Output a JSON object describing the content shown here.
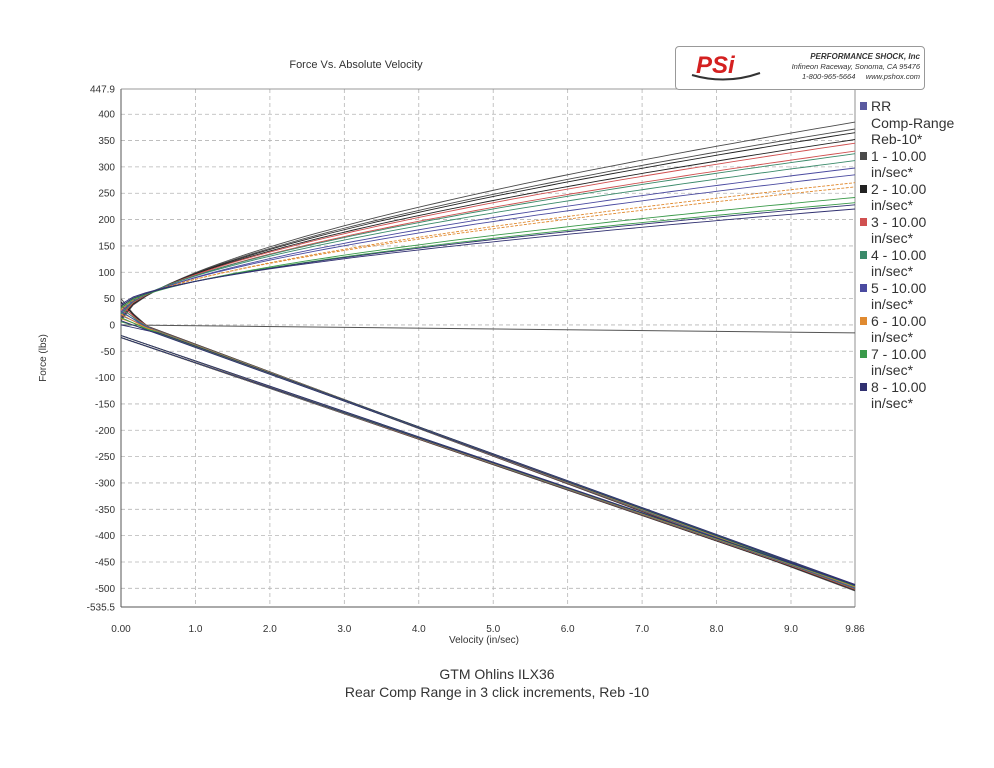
{
  "chart_data": {
    "type": "line",
    "title": "Force Vs. Absolute Velocity",
    "xlabel": "Velocity (in/sec)",
    "ylabel": "Force (lbs)",
    "xlim": [
      0,
      9.86
    ],
    "ylim": [
      -535.5,
      447.9
    ],
    "x_ticks": [
      "0.00",
      "1.0",
      "2.0",
      "3.0",
      "4.0",
      "5.0",
      "6.0",
      "7.0",
      "8.0",
      "9.0",
      "9.86"
    ],
    "x_tick_values": [
      0,
      1,
      2,
      3,
      4,
      5,
      6,
      7,
      8,
      9,
      9.86
    ],
    "y_ticks": [
      "447.9",
      "400",
      "350",
      "300",
      "250",
      "200",
      "150",
      "100",
      "50",
      "0",
      "-50",
      "-100",
      "-150",
      "-200",
      "-250",
      "-300",
      "-350",
      "-400",
      "-450",
      "-500",
      "-535.5"
    ],
    "y_tick_values": [
      447.9,
      400,
      350,
      300,
      250,
      200,
      150,
      100,
      50,
      0,
      -50,
      -100,
      -150,
      -200,
      -250,
      -300,
      -350,
      -400,
      -450,
      -500,
      -535.5
    ],
    "grid": true,
    "legend_position": "right",
    "legend_title": "RR\nComp-Range\nReb-10*",
    "legend_title_color": "#5a5aa0",
    "series": [
      {
        "name": "1 - 10.00\nin/sec*",
        "color": "#4a4a4a",
        "comp_values": [
          385,
          372
        ]
      },
      {
        "name": "2 - 10.00\nin/sec*",
        "color": "#222222",
        "comp_values": [
          365,
          352
        ]
      },
      {
        "name": "3 - 10.00\nin/sec*",
        "color": "#d05050",
        "comp_values": [
          345,
          330
        ]
      },
      {
        "name": "4 - 10.00\nin/sec*",
        "color": "#3a8a6a",
        "comp_values": [
          325,
          312
        ]
      },
      {
        "name": "5 - 10.00\nin/sec*",
        "color": "#4a4aa0",
        "comp_values": [
          298,
          285
        ]
      },
      {
        "name": "6 - 10.00\nin/sec*",
        "color": "#e08a30",
        "comp_values": [
          270,
          262
        ]
      },
      {
        "name": "7 - 10.00\nin/sec*",
        "color": "#3a9a4a",
        "comp_values": [
          242,
          232
        ]
      },
      {
        "name": "8 - 10.00\nin/sec*",
        "color": "#303070",
        "comp_values": [
          228,
          220
        ]
      }
    ],
    "rebound_end_value": -505
  },
  "logo": {
    "mark_text": "PSi",
    "company": "PERFORMANCE SHOCK, Inc",
    "address": "Infineon Raceway, Sonoma, CA 95476",
    "contact": "1-800-965-5664     www.pshox.com",
    "mark_color": "#d42020"
  },
  "footer": {
    "line1": "GTM Ohlins ILX36",
    "line2": "Rear Comp Range in 3 click increments, Reb -10"
  }
}
